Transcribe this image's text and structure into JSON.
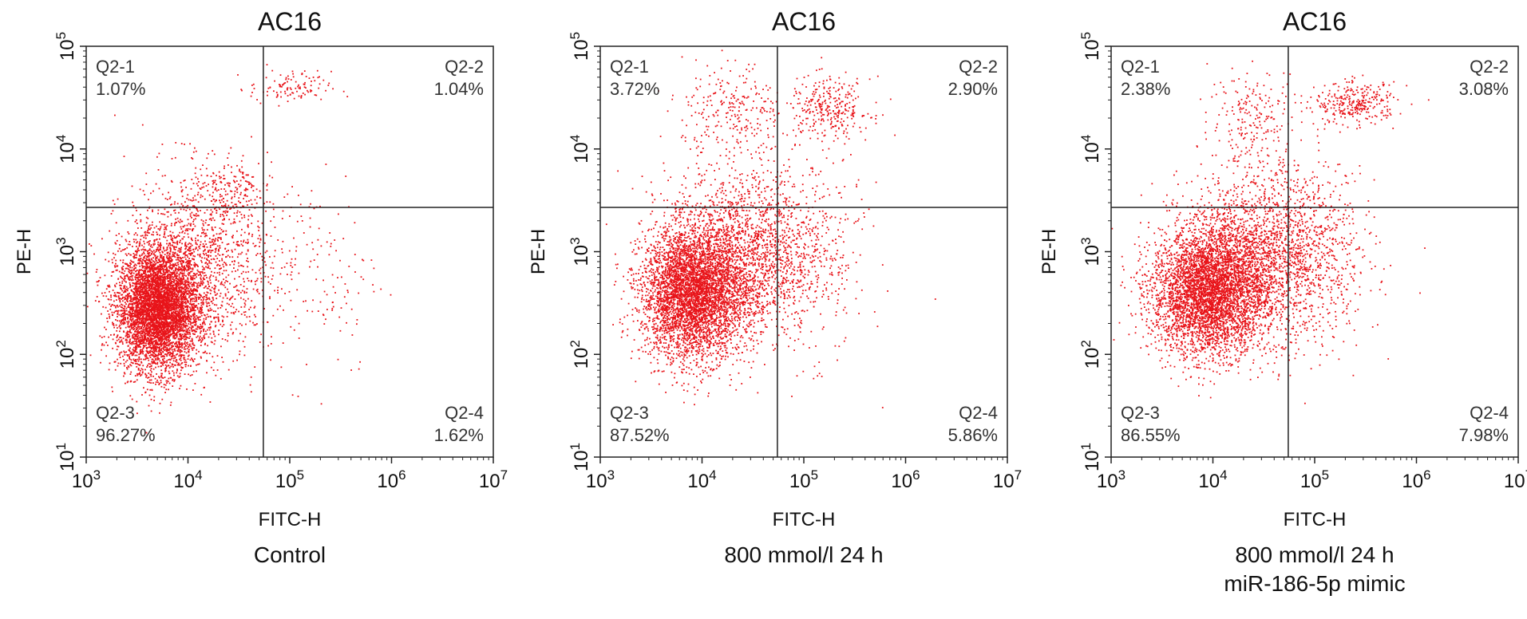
{
  "figure": {
    "panels": [
      {
        "title": "AC16",
        "xlabel": "FITC-H",
        "ylabel": "PE-H",
        "caption": [
          "Control"
        ],
        "quadrants": [
          {
            "label": "Q2-1",
            "value": "1.07%"
          },
          {
            "label": "Q2-2",
            "value": "1.04%"
          },
          {
            "label": "Q2-3",
            "value": "96.27%"
          },
          {
            "label": "Q2-4",
            "value": "1.62%"
          }
        ]
      },
      {
        "title": "AC16",
        "xlabel": "FITC-H",
        "ylabel": "PE-H",
        "caption": [
          "800 mmol/l    24 h"
        ],
        "quadrants": [
          {
            "label": "Q2-1",
            "value": "3.72%"
          },
          {
            "label": "Q2-2",
            "value": "2.90%"
          },
          {
            "label": "Q2-3",
            "value": "87.52%"
          },
          {
            "label": "Q2-4",
            "value": "5.86%"
          }
        ]
      },
      {
        "title": "AC16",
        "xlabel": "FITC-H",
        "ylabel": "PE-H",
        "caption": [
          "800 mmol/l    24 h",
          "miR-186-5p mimic"
        ],
        "quadrants": [
          {
            "label": "Q2-1",
            "value": "2.38%"
          },
          {
            "label": "Q2-2",
            "value": "3.08%"
          },
          {
            "label": "Q2-3",
            "value": "86.55%"
          },
          {
            "label": "Q2-4",
            "value": "7.98%"
          }
        ]
      }
    ]
  },
  "chart_data": [
    {
      "type": "scatter",
      "title": "AC16",
      "xlabel": "FITC-H",
      "ylabel": "PE-H",
      "xscale": "log",
      "yscale": "log",
      "xlim": [
        1000,
        10000000
      ],
      "ylim": [
        10,
        100000
      ],
      "x_ticks": [
        "10^3",
        "10^4",
        "10^5",
        "10^6",
        "10^7"
      ],
      "y_ticks": [
        "10^1",
        "10^2",
        "10^3",
        "10^4",
        "10^5"
      ],
      "gates": {
        "x": 55000,
        "y": 2700
      },
      "quadrants": {
        "Q2-1": 1.07,
        "Q2-2": 1.04,
        "Q2-3": 96.27,
        "Q2-4": 1.62
      },
      "grid": false,
      "point_color": "#e8141a",
      "clusters": [
        {
          "cx_log": 3.7,
          "cy_log": 2.45,
          "sx": 0.2,
          "sy": 0.3,
          "n": 5200
        },
        {
          "cx_log": 4.1,
          "cy_log": 2.9,
          "sx": 0.35,
          "sy": 0.45,
          "n": 1400
        },
        {
          "cx_log": 4.4,
          "cy_log": 3.6,
          "sx": 0.2,
          "sy": 0.12,
          "n": 140
        },
        {
          "cx_log": 5.0,
          "cy_log": 4.6,
          "sx": 0.2,
          "sy": 0.08,
          "n": 110
        },
        {
          "cx_log": 5.2,
          "cy_log": 2.8,
          "sx": 0.35,
          "sy": 0.5,
          "n": 160
        }
      ]
    },
    {
      "type": "scatter",
      "title": "AC16",
      "xlabel": "FITC-H",
      "ylabel": "PE-H",
      "xscale": "log",
      "yscale": "log",
      "xlim": [
        1000,
        10000000
      ],
      "ylim": [
        10,
        100000
      ],
      "x_ticks": [
        "10^3",
        "10^4",
        "10^5",
        "10^6",
        "10^7"
      ],
      "y_ticks": [
        "10^1",
        "10^2",
        "10^3",
        "10^4",
        "10^5"
      ],
      "gates": {
        "x": 55000,
        "y": 2700
      },
      "quadrants": {
        "Q2-1": 3.72,
        "Q2-2": 2.9,
        "Q2-3": 87.52,
        "Q2-4": 5.86
      },
      "grid": false,
      "point_color": "#e8141a",
      "clusters": [
        {
          "cx_log": 3.9,
          "cy_log": 2.6,
          "sx": 0.25,
          "sy": 0.32,
          "n": 4200
        },
        {
          "cx_log": 4.35,
          "cy_log": 2.95,
          "sx": 0.35,
          "sy": 0.4,
          "n": 1800
        },
        {
          "cx_log": 4.3,
          "cy_log": 4.35,
          "sx": 0.25,
          "sy": 0.25,
          "n": 280
        },
        {
          "cx_log": 5.25,
          "cy_log": 4.4,
          "sx": 0.2,
          "sy": 0.15,
          "n": 300
        },
        {
          "cx_log": 5.0,
          "cy_log": 3.0,
          "sx": 0.3,
          "sy": 0.5,
          "n": 420
        }
      ]
    },
    {
      "type": "scatter",
      "title": "AC16",
      "xlabel": "FITC-H",
      "ylabel": "PE-H",
      "xscale": "log",
      "yscale": "log",
      "xlim": [
        1000,
        10000000
      ],
      "ylim": [
        10,
        100000
      ],
      "x_ticks": [
        "10^3",
        "10^4",
        "10^5",
        "10^6",
        "10^7"
      ],
      "y_ticks": [
        "10^1",
        "10^2",
        "10^3",
        "10^4",
        "10^5"
      ],
      "gates": {
        "x": 55000,
        "y": 2700
      },
      "quadrants": {
        "Q2-1": 2.38,
        "Q2-2": 3.08,
        "Q2-3": 86.55,
        "Q2-4": 7.98
      },
      "grid": false,
      "point_color": "#e8141a",
      "clusters": [
        {
          "cx_log": 3.95,
          "cy_log": 2.6,
          "sx": 0.28,
          "sy": 0.3,
          "n": 4000
        },
        {
          "cx_log": 4.4,
          "cy_log": 2.95,
          "sx": 0.38,
          "sy": 0.38,
          "n": 1900
        },
        {
          "cx_log": 4.4,
          "cy_log": 4.3,
          "sx": 0.22,
          "sy": 0.25,
          "n": 220
        },
        {
          "cx_log": 5.4,
          "cy_log": 4.45,
          "sx": 0.2,
          "sy": 0.1,
          "n": 300
        },
        {
          "cx_log": 5.0,
          "cy_log": 3.0,
          "sx": 0.3,
          "sy": 0.5,
          "n": 520
        }
      ]
    }
  ]
}
